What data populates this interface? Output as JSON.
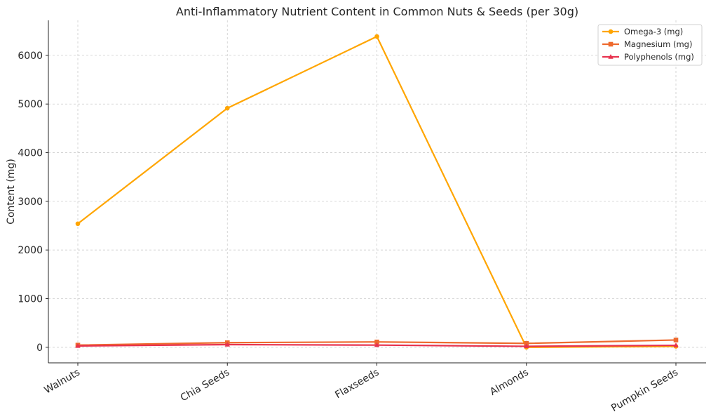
{
  "chart_data": {
    "type": "line",
    "title": "Anti-Inflammatory Nutrient Content in Common Nuts & Seeds (per 30g)",
    "xlabel": "",
    "ylabel": "Content (mg)",
    "categories": [
      "Walnuts",
      "Chia Seeds",
      "Flaxseeds",
      "Almonds",
      "Pumpkin Seeds"
    ],
    "ylim": [
      -320,
      6720
    ],
    "yticks": [
      0,
      1000,
      2000,
      3000,
      4000,
      5000,
      6000
    ],
    "grid": true,
    "legend_position": "top-right",
    "series": [
      {
        "name": "Omega-3 (mg)",
        "values": [
          2540,
          4915,
          6388,
          0,
          19
        ],
        "color": "#FFA500",
        "marker": "circle"
      },
      {
        "name": "Magnesium (mg)",
        "values": [
          45,
          95,
          110,
          80,
          150
        ],
        "color": "#EE6A2E",
        "marker": "square"
      },
      {
        "name": "Polyphenols (mg)",
        "values": [
          28,
          55,
          45,
          20,
          40
        ],
        "color": "#E8334F",
        "marker": "triangle"
      }
    ]
  }
}
